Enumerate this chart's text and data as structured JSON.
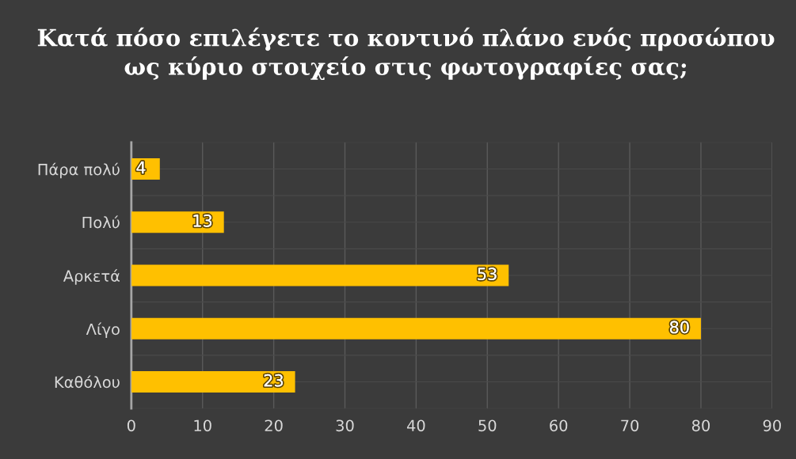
{
  "chart_data": {
    "type": "bar",
    "orientation": "horizontal",
    "title": "Κατά πόσο επιλέγετε το κοντινό πλάνο ενός προσώπου ως κύριο στοιχείο στις φωτογραφίες σας;",
    "categories": [
      "Πάρα πολύ",
      "Πολύ",
      "Αρκετά",
      "Λίγο",
      "Καθόλου"
    ],
    "values": [
      4,
      13,
      53,
      80,
      23
    ],
    "color": "#ffc000",
    "xlim": [
      0,
      90
    ],
    "xticks": [
      0,
      10,
      20,
      30,
      40,
      50,
      60,
      70,
      80,
      90
    ],
    "data_labels": true,
    "grid": true
  }
}
